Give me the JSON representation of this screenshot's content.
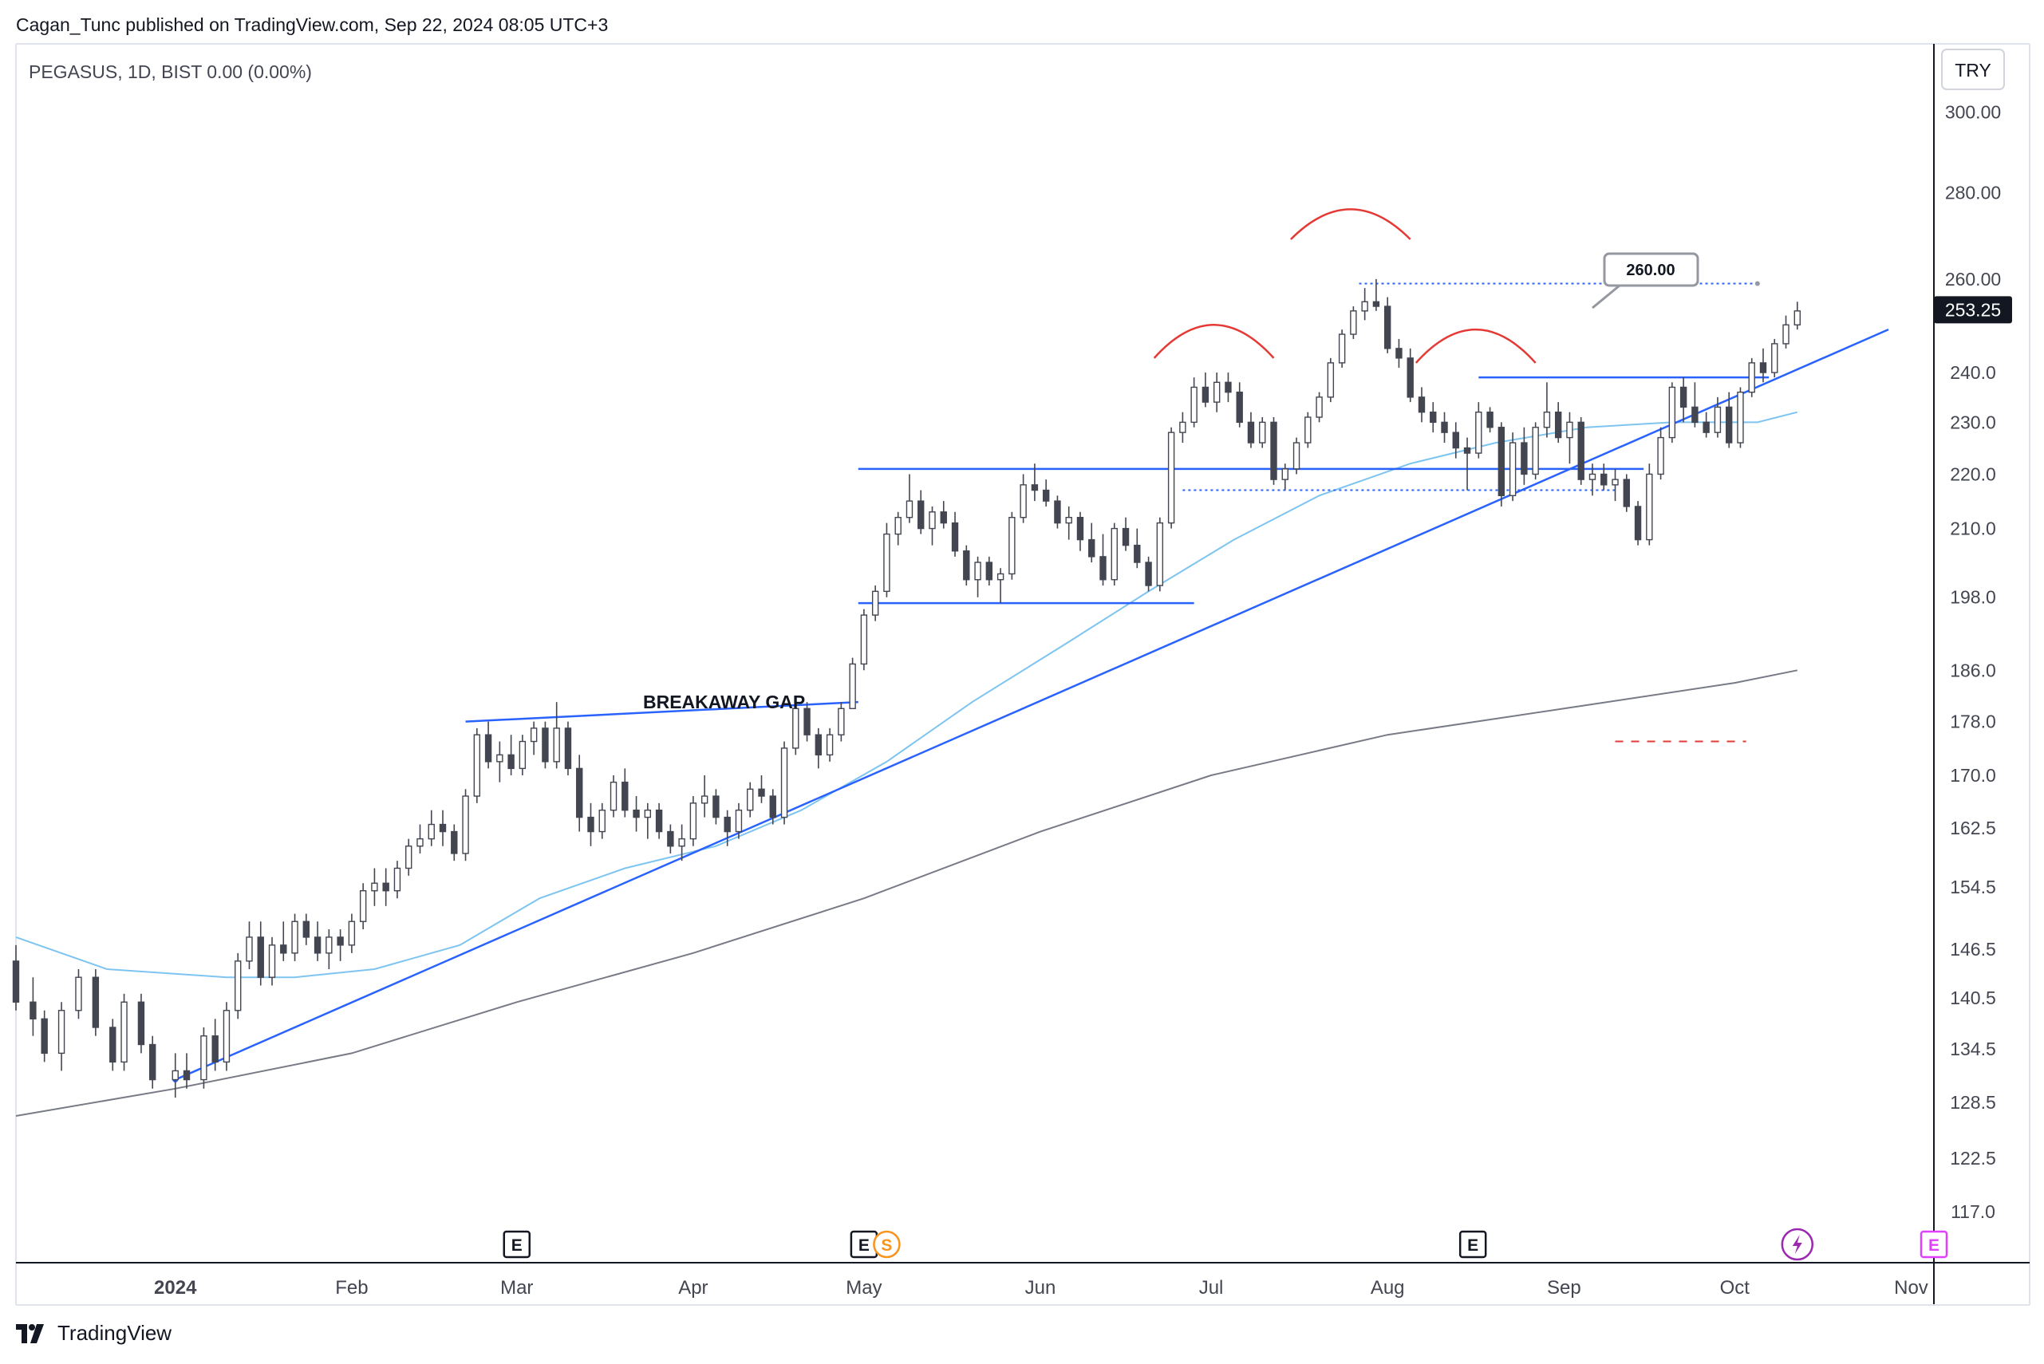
{
  "header": {
    "published_line": "Cagan_Tunc published on TradingView.com, Sep 22, 2024 08:05 UTC+3"
  },
  "footer": {
    "brand": "TradingView"
  },
  "chart_data": {
    "type": "candlestick",
    "symbol_line": "PEGASUS, 1D, BIST  0.00 (0.00%)",
    "currency": "TRY",
    "scale": "log",
    "ylim": [
      112,
      318
    ],
    "xlim": [
      "2023-12-04",
      "2024-11-05"
    ],
    "y_ticks": [
      "300.00",
      "280.00",
      "260.00",
      "240.0",
      "230.0",
      "220.0",
      "210.0",
      "198.0",
      "186.0",
      "178.0",
      "170.0",
      "162.5",
      "154.5",
      "146.5",
      "140.5",
      "134.5",
      "128.5",
      "122.5",
      "117.0"
    ],
    "x_ticks": [
      {
        "label": "2024",
        "date": "2024-01-01",
        "bold": true
      },
      {
        "label": "Feb",
        "date": "2024-02-01"
      },
      {
        "label": "Mar",
        "date": "2024-03-01"
      },
      {
        "label": "Apr",
        "date": "2024-04-01"
      },
      {
        "label": "May",
        "date": "2024-05-01"
      },
      {
        "label": "Jun",
        "date": "2024-06-01"
      },
      {
        "label": "Jul",
        "date": "2024-07-01"
      },
      {
        "label": "Aug",
        "date": "2024-08-01"
      },
      {
        "label": "Sep",
        "date": "2024-09-01"
      },
      {
        "label": "Oct",
        "date": "2024-10-01"
      },
      {
        "label": "Nov",
        "date": "2024-11-01"
      }
    ],
    "last_price": "253.25",
    "target_label": "260.00",
    "annotation": "BREAKAWAY GAP",
    "candles": [
      [
        "2023-12-04",
        145,
        147,
        139,
        140
      ],
      [
        "2023-12-07",
        140,
        143,
        136,
        138
      ],
      [
        "2023-12-09",
        138,
        139,
        133,
        134
      ],
      [
        "2023-12-12",
        134,
        140,
        132,
        139
      ],
      [
        "2023-12-15",
        139,
        144,
        138,
        143
      ],
      [
        "2023-12-18",
        143,
        144,
        136,
        137
      ],
      [
        "2023-12-21",
        137,
        138,
        132,
        133
      ],
      [
        "2023-12-23",
        133,
        141,
        132,
        140
      ],
      [
        "2023-12-26",
        140,
        141,
        134,
        135
      ],
      [
        "2023-12-28",
        135,
        136,
        130,
        131
      ],
      [
        "2024-01-01",
        131,
        134,
        129,
        132
      ],
      [
        "2024-01-03",
        132,
        134,
        130,
        131
      ],
      [
        "2024-01-06",
        131,
        137,
        130,
        136
      ],
      [
        "2024-01-08",
        136,
        138,
        132,
        133
      ],
      [
        "2024-01-10",
        133,
        140,
        132,
        139
      ],
      [
        "2024-01-12",
        139,
        146,
        138,
        145
      ],
      [
        "2024-01-14",
        145,
        150,
        144,
        148
      ],
      [
        "2024-01-16",
        148,
        150,
        142,
        143
      ],
      [
        "2024-01-18",
        143,
        148,
        142,
        147
      ],
      [
        "2024-01-20",
        147,
        150,
        145,
        146
      ],
      [
        "2024-01-22",
        146,
        151,
        145,
        150
      ],
      [
        "2024-01-24",
        150,
        151,
        147,
        148
      ],
      [
        "2024-01-26",
        148,
        150,
        145,
        146
      ],
      [
        "2024-01-28",
        146,
        149,
        144,
        148
      ],
      [
        "2024-01-30",
        148,
        149,
        145,
        147
      ],
      [
        "2024-02-01",
        147,
        151,
        146,
        150
      ],
      [
        "2024-02-03",
        150,
        155,
        149,
        154
      ],
      [
        "2024-02-05",
        154,
        157,
        152,
        155
      ],
      [
        "2024-02-07",
        155,
        157,
        152,
        154
      ],
      [
        "2024-02-09",
        154,
        158,
        153,
        157
      ],
      [
        "2024-02-11",
        157,
        161,
        156,
        160
      ],
      [
        "2024-02-13",
        160,
        163,
        159,
        161
      ],
      [
        "2024-02-15",
        161,
        165,
        160,
        163
      ],
      [
        "2024-02-17",
        163,
        165,
        160,
        162
      ],
      [
        "2024-02-19",
        162,
        163,
        158,
        159
      ],
      [
        "2024-02-21",
        159,
        168,
        158,
        167
      ],
      [
        "2024-02-23",
        167,
        177,
        166,
        176
      ],
      [
        "2024-02-25",
        176,
        178,
        171,
        172
      ],
      [
        "2024-02-27",
        172,
        175,
        169,
        173
      ],
      [
        "2024-02-29",
        173,
        176,
        170,
        171
      ],
      [
        "2024-03-02",
        171,
        176,
        170,
        175
      ],
      [
        "2024-03-04",
        175,
        178,
        173,
        177
      ],
      [
        "2024-03-06",
        177,
        178,
        171,
        172
      ],
      [
        "2024-03-08",
        172,
        181,
        171,
        177
      ],
      [
        "2024-03-10",
        177,
        178,
        170,
        171
      ],
      [
        "2024-03-12",
        171,
        173,
        162,
        164
      ],
      [
        "2024-03-14",
        164,
        166,
        160,
        162
      ],
      [
        "2024-03-16",
        162,
        166,
        161,
        165
      ],
      [
        "2024-03-18",
        165,
        170,
        164,
        169
      ],
      [
        "2024-03-20",
        169,
        171,
        164,
        165
      ],
      [
        "2024-03-22",
        165,
        167,
        162,
        164
      ],
      [
        "2024-03-24",
        164,
        166,
        161,
        165
      ],
      [
        "2024-03-26",
        165,
        166,
        161,
        162
      ],
      [
        "2024-03-28",
        162,
        163,
        159,
        160
      ],
      [
        "2024-03-30",
        160,
        163,
        158,
        161
      ],
      [
        "2024-04-01",
        161,
        167,
        160,
        166
      ],
      [
        "2024-04-03",
        166,
        170,
        164,
        167
      ],
      [
        "2024-04-05",
        167,
        168,
        163,
        164
      ],
      [
        "2024-04-07",
        164,
        165,
        160,
        162
      ],
      [
        "2024-04-09",
        162,
        166,
        161,
        165
      ],
      [
        "2024-04-11",
        165,
        169,
        164,
        168
      ],
      [
        "2024-04-13",
        168,
        170,
        166,
        167
      ],
      [
        "2024-04-15",
        167,
        168,
        163,
        164
      ],
      [
        "2024-04-17",
        164,
        175,
        163,
        174
      ],
      [
        "2024-04-19",
        174,
        181,
        173,
        180
      ],
      [
        "2024-04-21",
        180,
        181,
        175,
        176
      ],
      [
        "2024-04-23",
        176,
        177,
        171,
        173
      ],
      [
        "2024-04-25",
        173,
        177,
        172,
        176
      ],
      [
        "2024-04-27",
        176,
        181,
        175,
        180
      ],
      [
        "2024-04-29",
        180,
        188,
        180,
        187
      ],
      [
        "2024-05-01",
        187,
        196,
        186,
        195
      ],
      [
        "2024-05-03",
        195,
        200,
        194,
        199
      ],
      [
        "2024-05-05",
        199,
        211,
        198,
        209
      ],
      [
        "2024-05-07",
        209,
        213,
        207,
        212
      ],
      [
        "2024-05-09",
        212,
        220,
        211,
        215
      ],
      [
        "2024-05-11",
        215,
        217,
        209,
        210
      ],
      [
        "2024-05-13",
        210,
        214,
        207,
        213
      ],
      [
        "2024-05-15",
        213,
        215,
        210,
        211
      ],
      [
        "2024-05-17",
        211,
        213,
        205,
        206
      ],
      [
        "2024-05-19",
        206,
        207,
        200,
        201
      ],
      [
        "2024-05-21",
        201,
        205,
        198,
        204
      ],
      [
        "2024-05-23",
        204,
        205,
        200,
        201
      ],
      [
        "2024-05-25",
        201,
        203,
        197,
        202
      ],
      [
        "2024-05-27",
        202,
        213,
        201,
        212
      ],
      [
        "2024-05-29",
        212,
        220,
        211,
        218
      ],
      [
        "2024-05-31",
        218,
        222,
        215,
        217
      ],
      [
        "2024-06-02",
        217,
        219,
        214,
        215
      ],
      [
        "2024-06-04",
        215,
        216,
        210,
        211
      ],
      [
        "2024-06-06",
        211,
        214,
        208,
        212
      ],
      [
        "2024-06-08",
        212,
        213,
        206,
        208
      ],
      [
        "2024-06-10",
        208,
        211,
        204,
        205
      ],
      [
        "2024-06-12",
        205,
        209,
        200,
        201
      ],
      [
        "2024-06-14",
        201,
        211,
        200,
        210
      ],
      [
        "2024-06-16",
        210,
        212,
        206,
        207
      ],
      [
        "2024-06-18",
        207,
        210,
        203,
        204
      ],
      [
        "2024-06-20",
        204,
        205,
        199,
        200
      ],
      [
        "2024-06-22",
        200,
        212,
        199,
        211
      ],
      [
        "2024-06-24",
        211,
        229,
        210,
        228
      ],
      [
        "2024-06-26",
        228,
        232,
        226,
        230
      ],
      [
        "2024-06-28",
        230,
        239,
        229,
        237
      ],
      [
        "2024-06-30",
        237,
        240,
        233,
        234
      ],
      [
        "2024-07-02",
        234,
        240,
        232,
        238
      ],
      [
        "2024-07-04",
        238,
        240,
        234,
        236
      ],
      [
        "2024-07-06",
        236,
        238,
        229,
        230
      ],
      [
        "2024-07-08",
        230,
        232,
        225,
        226
      ],
      [
        "2024-07-10",
        226,
        231,
        225,
        230
      ],
      [
        "2024-07-12",
        230,
        231,
        218,
        219
      ],
      [
        "2024-07-14",
        219,
        222,
        217,
        221
      ],
      [
        "2024-07-16",
        221,
        227,
        220,
        226
      ],
      [
        "2024-07-18",
        226,
        232,
        225,
        231
      ],
      [
        "2024-07-20",
        231,
        236,
        230,
        235
      ],
      [
        "2024-07-22",
        235,
        243,
        234,
        242
      ],
      [
        "2024-07-24",
        242,
        249,
        241,
        248
      ],
      [
        "2024-07-26",
        248,
        254,
        247,
        253
      ],
      [
        "2024-07-28",
        253,
        258,
        251,
        255
      ],
      [
        "2024-07-30",
        255,
        260,
        253,
        254
      ],
      [
        "2024-08-01",
        254,
        256,
        244,
        245
      ],
      [
        "2024-08-03",
        245,
        247,
        241,
        243
      ],
      [
        "2024-08-05",
        243,
        245,
        234,
        235
      ],
      [
        "2024-08-07",
        235,
        237,
        230,
        232
      ],
      [
        "2024-08-09",
        232,
        234,
        228,
        230
      ],
      [
        "2024-08-11",
        230,
        232,
        226,
        228
      ],
      [
        "2024-08-13",
        228,
        230,
        223,
        225
      ],
      [
        "2024-08-15",
        225,
        227,
        217,
        224
      ],
      [
        "2024-08-17",
        224,
        234,
        223,
        232
      ],
      [
        "2024-08-19",
        232,
        233,
        228,
        229
      ],
      [
        "2024-08-21",
        229,
        230,
        214,
        216
      ],
      [
        "2024-08-23",
        216,
        228,
        215,
        226
      ],
      [
        "2024-08-25",
        226,
        229,
        218,
        220
      ],
      [
        "2024-08-27",
        220,
        230,
        219,
        229
      ],
      [
        "2024-08-29",
        229,
        238,
        227,
        232
      ],
      [
        "2024-08-31",
        232,
        234,
        226,
        227
      ],
      [
        "2024-09-02",
        227,
        232,
        222,
        230
      ],
      [
        "2024-09-04",
        230,
        231,
        218,
        219
      ],
      [
        "2024-09-06",
        219,
        222,
        216,
        220
      ],
      [
        "2024-09-08",
        220,
        222,
        217,
        218
      ],
      [
        "2024-09-10",
        218,
        221,
        215,
        219
      ],
      [
        "2024-09-12",
        219,
        220,
        213,
        214
      ],
      [
        "2024-09-14",
        214,
        215,
        207,
        208
      ],
      [
        "2024-09-16",
        208,
        222,
        207,
        220
      ],
      [
        "2024-09-18",
        220,
        229,
        219,
        227
      ],
      [
        "2024-09-20",
        227,
        238,
        226,
        237
      ],
      [
        "2024-09-22",
        237,
        239,
        230,
        233
      ],
      [
        "2024-09-24",
        233,
        238,
        229,
        230
      ],
      [
        "2024-09-26",
        230,
        232,
        227,
        228
      ],
      [
        "2024-09-28",
        228,
        235,
        227,
        233
      ],
      [
        "2024-09-30",
        233,
        236,
        225,
        226
      ],
      [
        "2024-10-02",
        226,
        237,
        225,
        236
      ],
      [
        "2024-10-04",
        236,
        243,
        235,
        242
      ],
      [
        "2024-10-06",
        242,
        245,
        238,
        240
      ],
      [
        "2024-10-08",
        240,
        247,
        239,
        246
      ],
      [
        "2024-10-10",
        246,
        252,
        245,
        250
      ],
      [
        "2024-10-12",
        250,
        255,
        249,
        253
      ]
    ],
    "ma_fast": [
      [
        "2023-12-04",
        148
      ],
      [
        "2023-12-20",
        144
      ],
      [
        "2024-01-10",
        143
      ],
      [
        "2024-01-22",
        143
      ],
      [
        "2024-02-05",
        144
      ],
      [
        "2024-02-20",
        147
      ],
      [
        "2024-03-05",
        153
      ],
      [
        "2024-03-20",
        157
      ],
      [
        "2024-04-05",
        160
      ],
      [
        "2024-04-20",
        165
      ],
      [
        "2024-05-05",
        172
      ],
      [
        "2024-05-20",
        181
      ],
      [
        "2024-06-05",
        190
      ],
      [
        "2024-06-20",
        199
      ],
      [
        "2024-07-05",
        208
      ],
      [
        "2024-07-20",
        216
      ],
      [
        "2024-08-05",
        222
      ],
      [
        "2024-08-20",
        226
      ],
      [
        "2024-09-05",
        229
      ],
      [
        "2024-09-20",
        230
      ],
      [
        "2024-10-05",
        230
      ],
      [
        "2024-10-12",
        232
      ]
    ],
    "ma_slow": [
      [
        "2023-12-04",
        127
      ],
      [
        "2024-01-01",
        130
      ],
      [
        "2024-02-01",
        134
      ],
      [
        "2024-03-01",
        140
      ],
      [
        "2024-04-01",
        146
      ],
      [
        "2024-05-01",
        153
      ],
      [
        "2024-06-01",
        162
      ],
      [
        "2024-07-01",
        170
      ],
      [
        "2024-08-01",
        176
      ],
      [
        "2024-09-01",
        180
      ],
      [
        "2024-10-01",
        184
      ],
      [
        "2024-10-12",
        186
      ]
    ],
    "markers": [
      {
        "label": "E",
        "date": "2024-03-01",
        "color": "#131722"
      },
      {
        "label": "E",
        "date": "2024-05-01",
        "color": "#131722"
      },
      {
        "label": "S",
        "date": "2024-05-05",
        "color": "#f7941d"
      },
      {
        "label": "E",
        "date": "2024-08-16",
        "color": "#131722"
      },
      {
        "label": "",
        "date": "2024-10-12",
        "color": "#9c27b0"
      },
      {
        "label": "E",
        "date": "2024-11-05",
        "color": "#e040fb"
      }
    ],
    "colors": {
      "candle_up": "#ffffff",
      "candle_down": "#434651",
      "candle_stroke": "#434651",
      "trendline": "#2962ff",
      "ma_fast": "#7ec4f0",
      "ma_slow": "#787b86",
      "arcs": "#e53935",
      "price_tag": "#131722"
    }
  }
}
